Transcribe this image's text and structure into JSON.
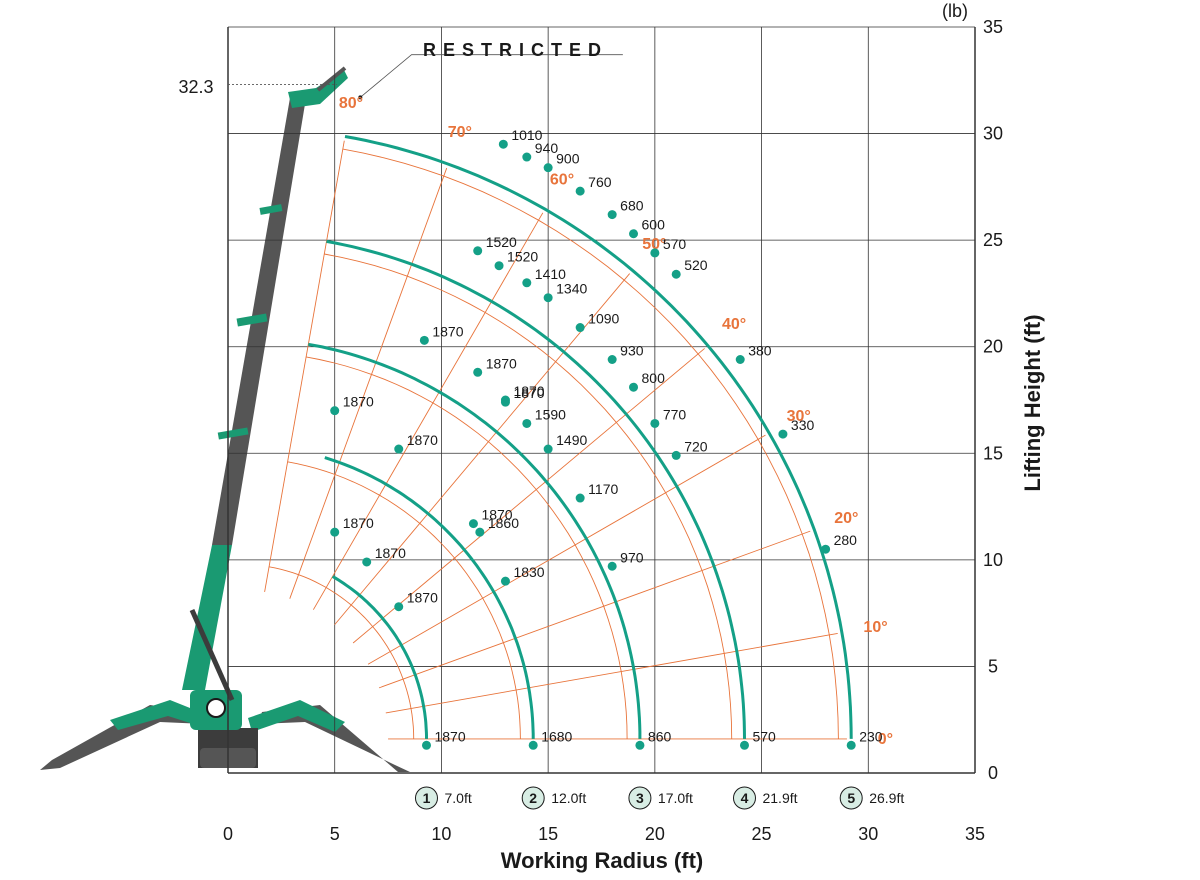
{
  "chart_data": {
    "type": "load-chart",
    "xlabel": "Working Radius (ft)",
    "ylabel": "Lifting Height (ft)",
    "unit_label": "(lb)",
    "xlim": [
      0,
      35
    ],
    "ylim": [
      0,
      35
    ],
    "x_ticks": [
      0,
      5,
      10,
      15,
      20,
      25,
      30,
      35
    ],
    "y_ticks": [
      0,
      5,
      10,
      15,
      20,
      25,
      30,
      35
    ],
    "max_height_label": "32.3",
    "max_height": 32.3,
    "restricted_label": "RESTRICTED",
    "angle_lines": [
      {
        "label": "80°",
        "angle": 80
      },
      {
        "label": "70°",
        "angle": 70
      },
      {
        "label": "60°",
        "angle": 60
      },
      {
        "label": "50°",
        "angle": 50
      },
      {
        "label": "40°",
        "angle": 40
      },
      {
        "label": "30°",
        "angle": 30
      },
      {
        "label": "20°",
        "angle": 20
      },
      {
        "label": "10°",
        "angle": 10
      },
      {
        "label": "0°",
        "angle": 0
      }
    ],
    "boom_extensions": [
      {
        "stage": "1",
        "length_label": "7.0ft",
        "points": [
          {
            "x": 9.3,
            "y": 1.3,
            "load": "1870"
          },
          {
            "x": 8.0,
            "y": 7.8,
            "load": "1870"
          },
          {
            "x": 6.5,
            "y": 9.9,
            "load": "1870"
          },
          {
            "x": 5.0,
            "y": 11.3,
            "load": "1870"
          },
          {
            "x": 8.0,
            "y": 15.2,
            "load": "1870"
          },
          {
            "x": 5.0,
            "y": 17.0,
            "load": "1870"
          },
          {
            "x": 9.2,
            "y": 20.3,
            "load": "1870"
          }
        ]
      },
      {
        "stage": "2",
        "length_label": "12.0ft",
        "points": [
          {
            "x": 14.3,
            "y": 1.3,
            "load": "1680"
          },
          {
            "x": 13.0,
            "y": 9.0,
            "load": "1830"
          },
          {
            "x": 11.8,
            "y": 11.3,
            "load": "1860"
          },
          {
            "x": 11.5,
            "y": 11.7,
            "load": "1870"
          },
          {
            "x": 13.0,
            "y": 17.4,
            "load": "1870"
          },
          {
            "x": 11.7,
            "y": 18.8,
            "load": "1870"
          },
          {
            "x": 11.7,
            "y": 24.5,
            "load": "1520"
          }
        ]
      },
      {
        "stage": "3",
        "length_label": "17.0ft",
        "points": [
          {
            "x": 19.3,
            "y": 1.3,
            "load": "860"
          },
          {
            "x": 18.0,
            "y": 9.7,
            "load": "970"
          },
          {
            "x": 16.5,
            "y": 12.9,
            "load": "1170"
          },
          {
            "x": 15.0,
            "y": 15.2,
            "load": "1490"
          },
          {
            "x": 14.0,
            "y": 16.4,
            "load": "1590"
          },
          {
            "x": 13.0,
            "y": 17.5,
            "load": "1870"
          },
          {
            "x": 15.0,
            "y": 22.3,
            "load": "1340"
          },
          {
            "x": 14.0,
            "y": 23.0,
            "load": "1410"
          },
          {
            "x": 12.7,
            "y": 23.8,
            "load": "1520"
          }
        ]
      },
      {
        "stage": "4",
        "length_label": "21.9ft",
        "points": [
          {
            "x": 24.2,
            "y": 1.3,
            "load": "570"
          },
          {
            "x": 21.0,
            "y": 14.9,
            "load": "720"
          },
          {
            "x": 20.0,
            "y": 16.4,
            "load": "770"
          },
          {
            "x": 19.0,
            "y": 18.1,
            "load": "800"
          },
          {
            "x": 18.0,
            "y": 19.4,
            "load": "930"
          },
          {
            "x": 16.5,
            "y": 20.9,
            "load": "1090"
          },
          {
            "x": 20.0,
            "y": 24.4,
            "load": "570"
          },
          {
            "x": 21.0,
            "y": 23.4,
            "load": "520"
          },
          {
            "x": 19.0,
            "y": 25.3,
            "load": "600"
          }
        ]
      },
      {
        "stage": "5",
        "length_label": "26.9ft",
        "points": [
          {
            "x": 29.2,
            "y": 1.3,
            "load": "230"
          },
          {
            "x": 28.0,
            "y": 10.5,
            "load": "280"
          },
          {
            "x": 26.0,
            "y": 15.9,
            "load": "330"
          },
          {
            "x": 24.0,
            "y": 19.4,
            "load": "380"
          },
          {
            "x": 18.0,
            "y": 26.2,
            "load": "680"
          },
          {
            "x": 16.5,
            "y": 27.3,
            "load": "760"
          },
          {
            "x": 15.0,
            "y": 28.4,
            "load": "900"
          },
          {
            "x": 14.0,
            "y": 28.9,
            "load": "940"
          },
          {
            "x": 12.9,
            "y": 29.5,
            "load": "1010"
          }
        ]
      }
    ],
    "colors": {
      "curve": "#14a087",
      "angle_line": "#e8743b",
      "grid": "#333333",
      "crane_green": "#1a9a72",
      "crane_gray": "#555555",
      "marker_fill": "#d8ede4"
    }
  }
}
